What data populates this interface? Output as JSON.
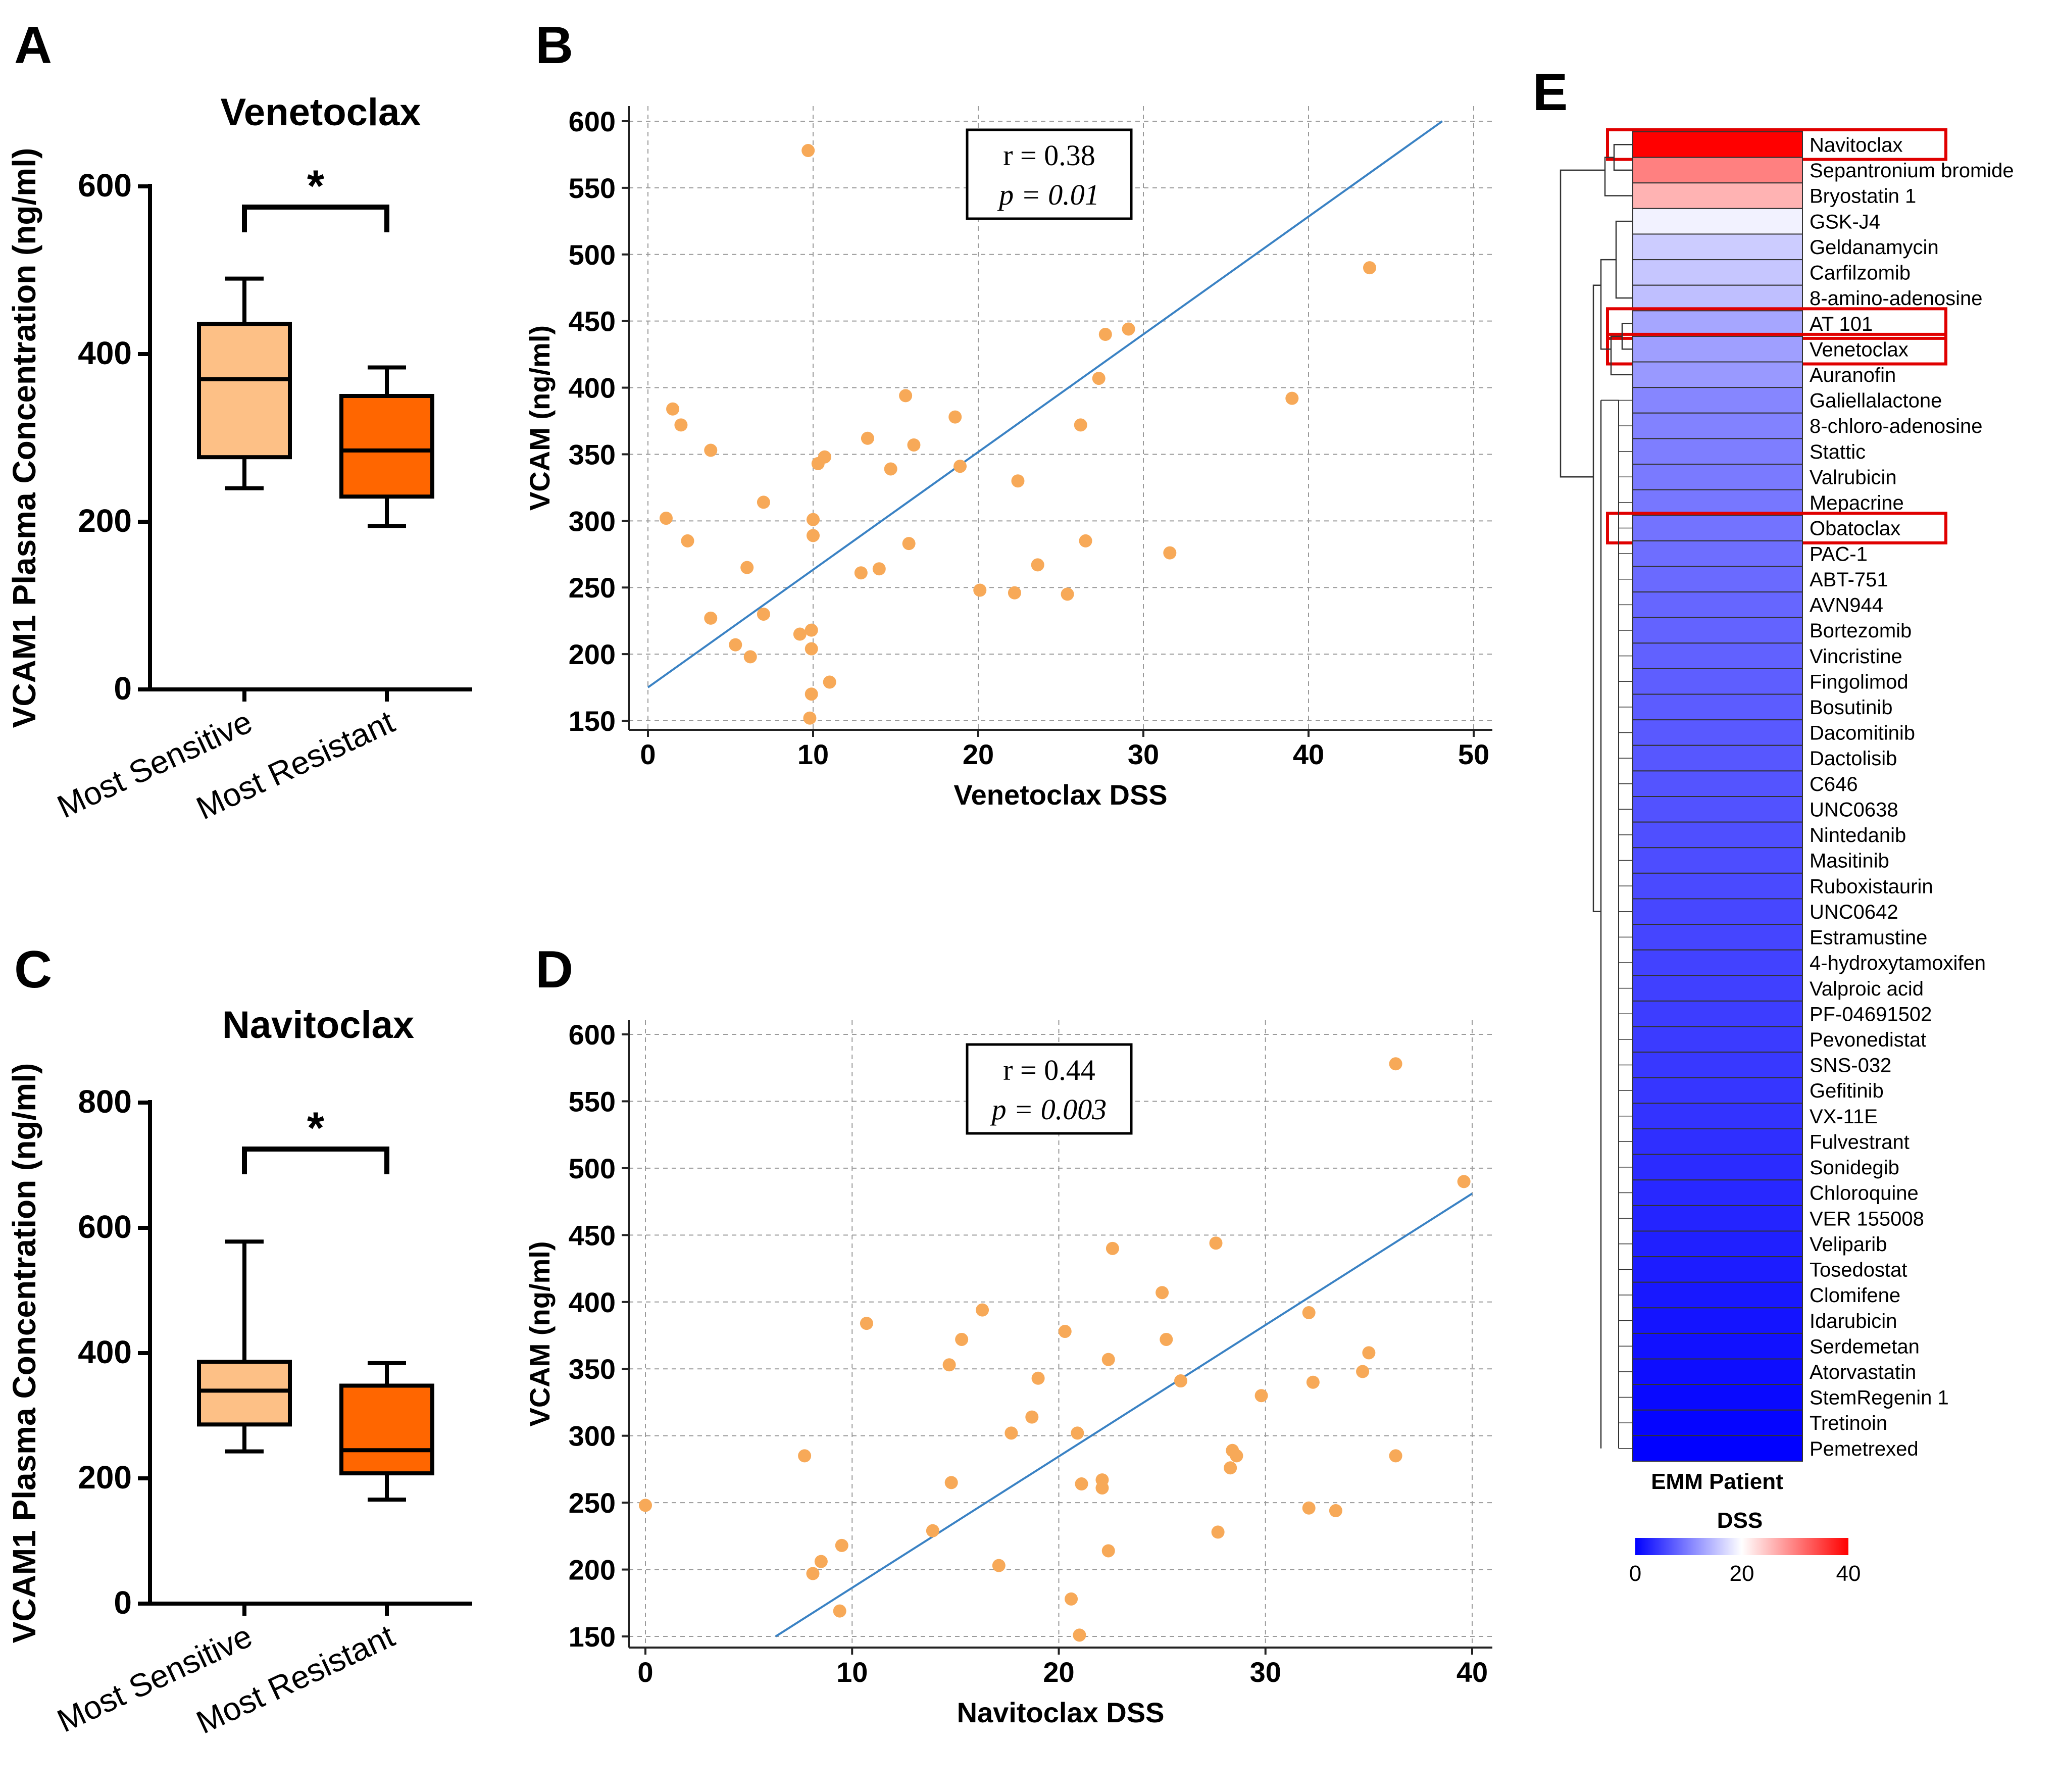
{
  "chart_data": [
    {
      "panel": "A",
      "type": "box",
      "title": "Venetoclax",
      "ylabel": "VCAM1 Plasma Concentration (ng/ml)",
      "ylim": [
        0,
        600
      ],
      "yticks": [
        0,
        200,
        400,
        600
      ],
      "categories": [
        "Most Sensitive",
        "Most Resistant"
      ],
      "boxes": [
        {
          "name": "Most Sensitive",
          "min": 240,
          "q1": 277,
          "median": 370,
          "q3": 436,
          "max": 490,
          "color": "#FDC086"
        },
        {
          "name": "Most Resistant",
          "min": 195,
          "q1": 230,
          "median": 285,
          "q3": 350,
          "max": 384,
          "color": "#FF6600"
        }
      ],
      "significance": "*"
    },
    {
      "panel": "B",
      "type": "scatter",
      "xlabel": "Venetoclax DSS",
      "ylabel": "VCAM (ng/ml)",
      "xlim": [
        0,
        50
      ],
      "ylim": [
        150,
        600
      ],
      "xticks": [
        0,
        10,
        20,
        30,
        40,
        50
      ],
      "yticks": [
        150,
        200,
        250,
        300,
        350,
        400,
        450,
        500,
        550,
        600
      ],
      "points": [
        [
          9.7,
          578
        ],
        [
          43.7,
          490
        ],
        [
          29.1,
          444
        ],
        [
          27.7,
          440
        ],
        [
          27.3,
          407
        ],
        [
          39,
          392
        ],
        [
          15.6,
          394
        ],
        [
          1.5,
          384
        ],
        [
          18.6,
          378
        ],
        [
          2,
          372
        ],
        [
          26.2,
          372
        ],
        [
          13.3,
          362
        ],
        [
          16.1,
          357
        ],
        [
          3.8,
          353
        ],
        [
          10.7,
          348
        ],
        [
          10.3,
          343
        ],
        [
          14.7,
          339
        ],
        [
          18.9,
          341
        ],
        [
          22.4,
          330
        ],
        [
          7,
          314
        ],
        [
          1.1,
          302
        ],
        [
          10,
          301
        ],
        [
          10,
          289
        ],
        [
          2.4,
          285
        ],
        [
          15.8,
          283
        ],
        [
          26.5,
          285
        ],
        [
          31.6,
          276
        ],
        [
          6,
          265
        ],
        [
          23.6,
          267
        ],
        [
          14,
          264
        ],
        [
          12.9,
          261
        ],
        [
          20.1,
          248
        ],
        [
          22.2,
          246
        ],
        [
          25.4,
          245
        ],
        [
          7,
          230
        ],
        [
          3.8,
          227
        ],
        [
          9.9,
          218
        ],
        [
          9.2,
          215
        ],
        [
          5.3,
          207
        ],
        [
          9.9,
          204
        ],
        [
          6.2,
          198
        ],
        [
          11,
          179
        ],
        [
          9.9,
          170
        ],
        [
          9.8,
          152
        ]
      ],
      "fit": {
        "x": [
          0,
          48.1
        ],
        "y": [
          175,
          600
        ]
      },
      "stats": {
        "r": "r = 0.38",
        "p": "p = 0.01"
      },
      "point_color": "#F7A958",
      "line_color": "#3A82C4"
    },
    {
      "panel": "C",
      "type": "box",
      "title": "Navitoclax",
      "ylabel": "VCAM1 Plasma Concentration (ng/ml)",
      "ylim": [
        0,
        800
      ],
      "yticks": [
        0,
        200,
        400,
        600,
        800
      ],
      "categories": [
        "Most Sensitive",
        "Most Resistant"
      ],
      "boxes": [
        {
          "name": "Most Sensitive",
          "min": 243,
          "q1": 286,
          "median": 340,
          "q3": 386,
          "max": 578,
          "color": "#FDC086"
        },
        {
          "name": "Most Resistant",
          "min": 166,
          "q1": 208,
          "median": 245,
          "q3": 348,
          "max": 384,
          "color": "#FF6600"
        }
      ],
      "significance": "*"
    },
    {
      "panel": "D",
      "type": "scatter",
      "xlabel": "Navitoclax DSS",
      "ylabel": "VCAM (ng/ml)",
      "xlim": [
        0,
        40
      ],
      "ylim": [
        150,
        600
      ],
      "xticks": [
        0,
        10,
        20,
        30,
        40
      ],
      "yticks": [
        150,
        200,
        250,
        300,
        350,
        400,
        450,
        500,
        550,
        600
      ],
      "points": [
        [
          36.3,
          578
        ],
        [
          39.6,
          490
        ],
        [
          27.6,
          444
        ],
        [
          22.6,
          440
        ],
        [
          25,
          407
        ],
        [
          32.1,
          392
        ],
        [
          16.3,
          394
        ],
        [
          10.7,
          384
        ],
        [
          20.3,
          378
        ],
        [
          15.3,
          372
        ],
        [
          25.2,
          372
        ],
        [
          35,
          362
        ],
        [
          22.4,
          357
        ],
        [
          14.7,
          353
        ],
        [
          34.7,
          348
        ],
        [
          19,
          343
        ],
        [
          25.9,
          341
        ],
        [
          32.3,
          340
        ],
        [
          29.8,
          330
        ],
        [
          18.7,
          314
        ],
        [
          17.7,
          302
        ],
        [
          20.9,
          302
        ],
        [
          28.4,
          289
        ],
        [
          28.6,
          285
        ],
        [
          7.7,
          285
        ],
        [
          36.3,
          285
        ],
        [
          28.3,
          276
        ],
        [
          22.1,
          267
        ],
        [
          14.8,
          265
        ],
        [
          21.1,
          264
        ],
        [
          22.1,
          261
        ],
        [
          32.1,
          246
        ],
        [
          0,
          248
        ],
        [
          33.4,
          244
        ],
        [
          13.9,
          229
        ],
        [
          27.7,
          228
        ],
        [
          9.5,
          218
        ],
        [
          22.4,
          214
        ],
        [
          8.5,
          206
        ],
        [
          17.1,
          203
        ],
        [
          8.1,
          197
        ],
        [
          20.6,
          178
        ],
        [
          9.4,
          169
        ],
        [
          21,
          151
        ]
      ],
      "fit": {
        "x": [
          6.3,
          40
        ],
        "y": [
          150,
          481
        ]
      },
      "stats": {
        "r": "r = 0.44",
        "p": "p = 0.003"
      },
      "point_color": "#F7A958",
      "line_color": "#3A82C4"
    },
    {
      "panel": "E",
      "type": "heatmap",
      "column_label": "EMM Patient",
      "colorbar_title": "DSS",
      "colorbar_ticks": [
        0,
        20,
        40
      ],
      "colorscale": {
        "low": "#0000FF",
        "mid": "#FFFFFF",
        "high": "#FF0000",
        "domain": [
          0,
          20,
          40
        ]
      },
      "highlighted": [
        "Navitoclax",
        "AT 101",
        "Venetoclax",
        "Obatoclax"
      ],
      "highlight_color": "#E00000",
      "rows": [
        {
          "drug": "Navitoclax",
          "dss": 40
        },
        {
          "drug": "Sepantronium bromide",
          "dss": 30
        },
        {
          "drug": "Bryostatin 1",
          "dss": 26
        },
        {
          "drug": "GSK-J4",
          "dss": 19
        },
        {
          "drug": "Geldanamycin",
          "dss": 16
        },
        {
          "drug": "Carfilzomib",
          "dss": 15.5
        },
        {
          "drug": "8-amino-adenosine",
          "dss": 15
        },
        {
          "drug": "AT 101",
          "dss": 13
        },
        {
          "drug": "Venetoclax",
          "dss": 12.5
        },
        {
          "drug": "Auranofin",
          "dss": 12
        },
        {
          "drug": "Galiellalactone",
          "dss": 10.5
        },
        {
          "drug": "8-chloro-adenosine",
          "dss": 10.2
        },
        {
          "drug": "Stattic",
          "dss": 9.9
        },
        {
          "drug": "Valrubicin",
          "dss": 9.6
        },
        {
          "drug": "Mepacrine",
          "dss": 9.3
        },
        {
          "drug": "Obatoclax",
          "dss": 9
        },
        {
          "drug": "PAC-1",
          "dss": 8.6
        },
        {
          "drug": "ABT-751",
          "dss": 8.3
        },
        {
          "drug": "AVN944",
          "dss": 8
        },
        {
          "drug": "Bortezomib",
          "dss": 7.8
        },
        {
          "drug": "Vincristine",
          "dss": 7.6
        },
        {
          "drug": "Fingolimod",
          "dss": 7.4
        },
        {
          "drug": "Bosutinib",
          "dss": 7.2
        },
        {
          "drug": "Dacomitinib",
          "dss": 7
        },
        {
          "drug": "Dactolisib",
          "dss": 6.8
        },
        {
          "drug": "C646",
          "dss": 6.6
        },
        {
          "drug": "UNC0638",
          "dss": 6.4
        },
        {
          "drug": "Nintedanib",
          "dss": 6.2
        },
        {
          "drug": "Masitinib",
          "dss": 6
        },
        {
          "drug": "Ruboxistaurin",
          "dss": 5.8
        },
        {
          "drug": "UNC0642",
          "dss": 5.6
        },
        {
          "drug": "Estramustine",
          "dss": 5.4
        },
        {
          "drug": "4-hydroxytamoxifen",
          "dss": 5.2
        },
        {
          "drug": "Valproic acid",
          "dss": 5
        },
        {
          "drug": "PF-04691502",
          "dss": 4.8
        },
        {
          "drug": "Pevonedistat",
          "dss": 4.6
        },
        {
          "drug": "SNS-032",
          "dss": 4.4
        },
        {
          "drug": "Gefitinib",
          "dss": 4.2
        },
        {
          "drug": "VX-11E",
          "dss": 4
        },
        {
          "drug": "Fulvestrant",
          "dss": 3.7
        },
        {
          "drug": "Sonidegib",
          "dss": 3.4
        },
        {
          "drug": "Chloroquine",
          "dss": 3.1
        },
        {
          "drug": "VER 155008",
          "dss": 2.8
        },
        {
          "drug": "Veliparib",
          "dss": 2.5
        },
        {
          "drug": "Tosedostat",
          "dss": 2.2
        },
        {
          "drug": "Clomifene",
          "dss": 1.9
        },
        {
          "drug": "Idarubicin",
          "dss": 1.6
        },
        {
          "drug": "Serdemetan",
          "dss": 1.3
        },
        {
          "drug": "Atorvastatin",
          "dss": 1
        },
        {
          "drug": "StemRegenin 1",
          "dss": 0.7
        },
        {
          "drug": "Tretinoin",
          "dss": 0.4
        },
        {
          "drug": "Pemetrexed",
          "dss": 0.1
        }
      ]
    }
  ]
}
